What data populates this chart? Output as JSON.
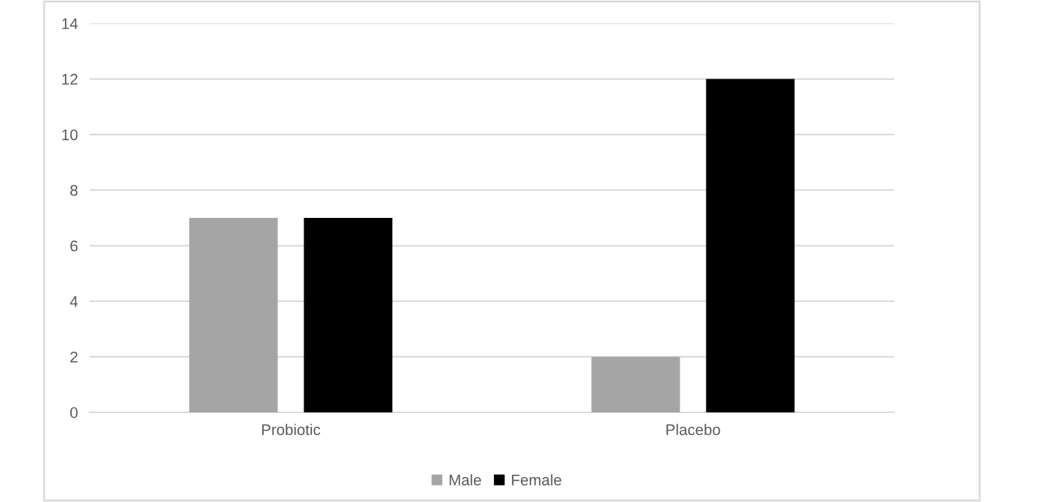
{
  "chart_data": {
    "type": "bar",
    "categories": [
      "Probiotic",
      "Placebo"
    ],
    "series": [
      {
        "name": "Male",
        "color": "#a5a5a5",
        "values": [
          7,
          2
        ]
      },
      {
        "name": "Female",
        "color": "#000000",
        "values": [
          7,
          12
        ]
      }
    ],
    "ylim": [
      0,
      14
    ],
    "yticks": [
      0,
      2,
      4,
      6,
      8,
      10,
      12,
      14
    ],
    "grid": "y",
    "legend": "bottom"
  }
}
